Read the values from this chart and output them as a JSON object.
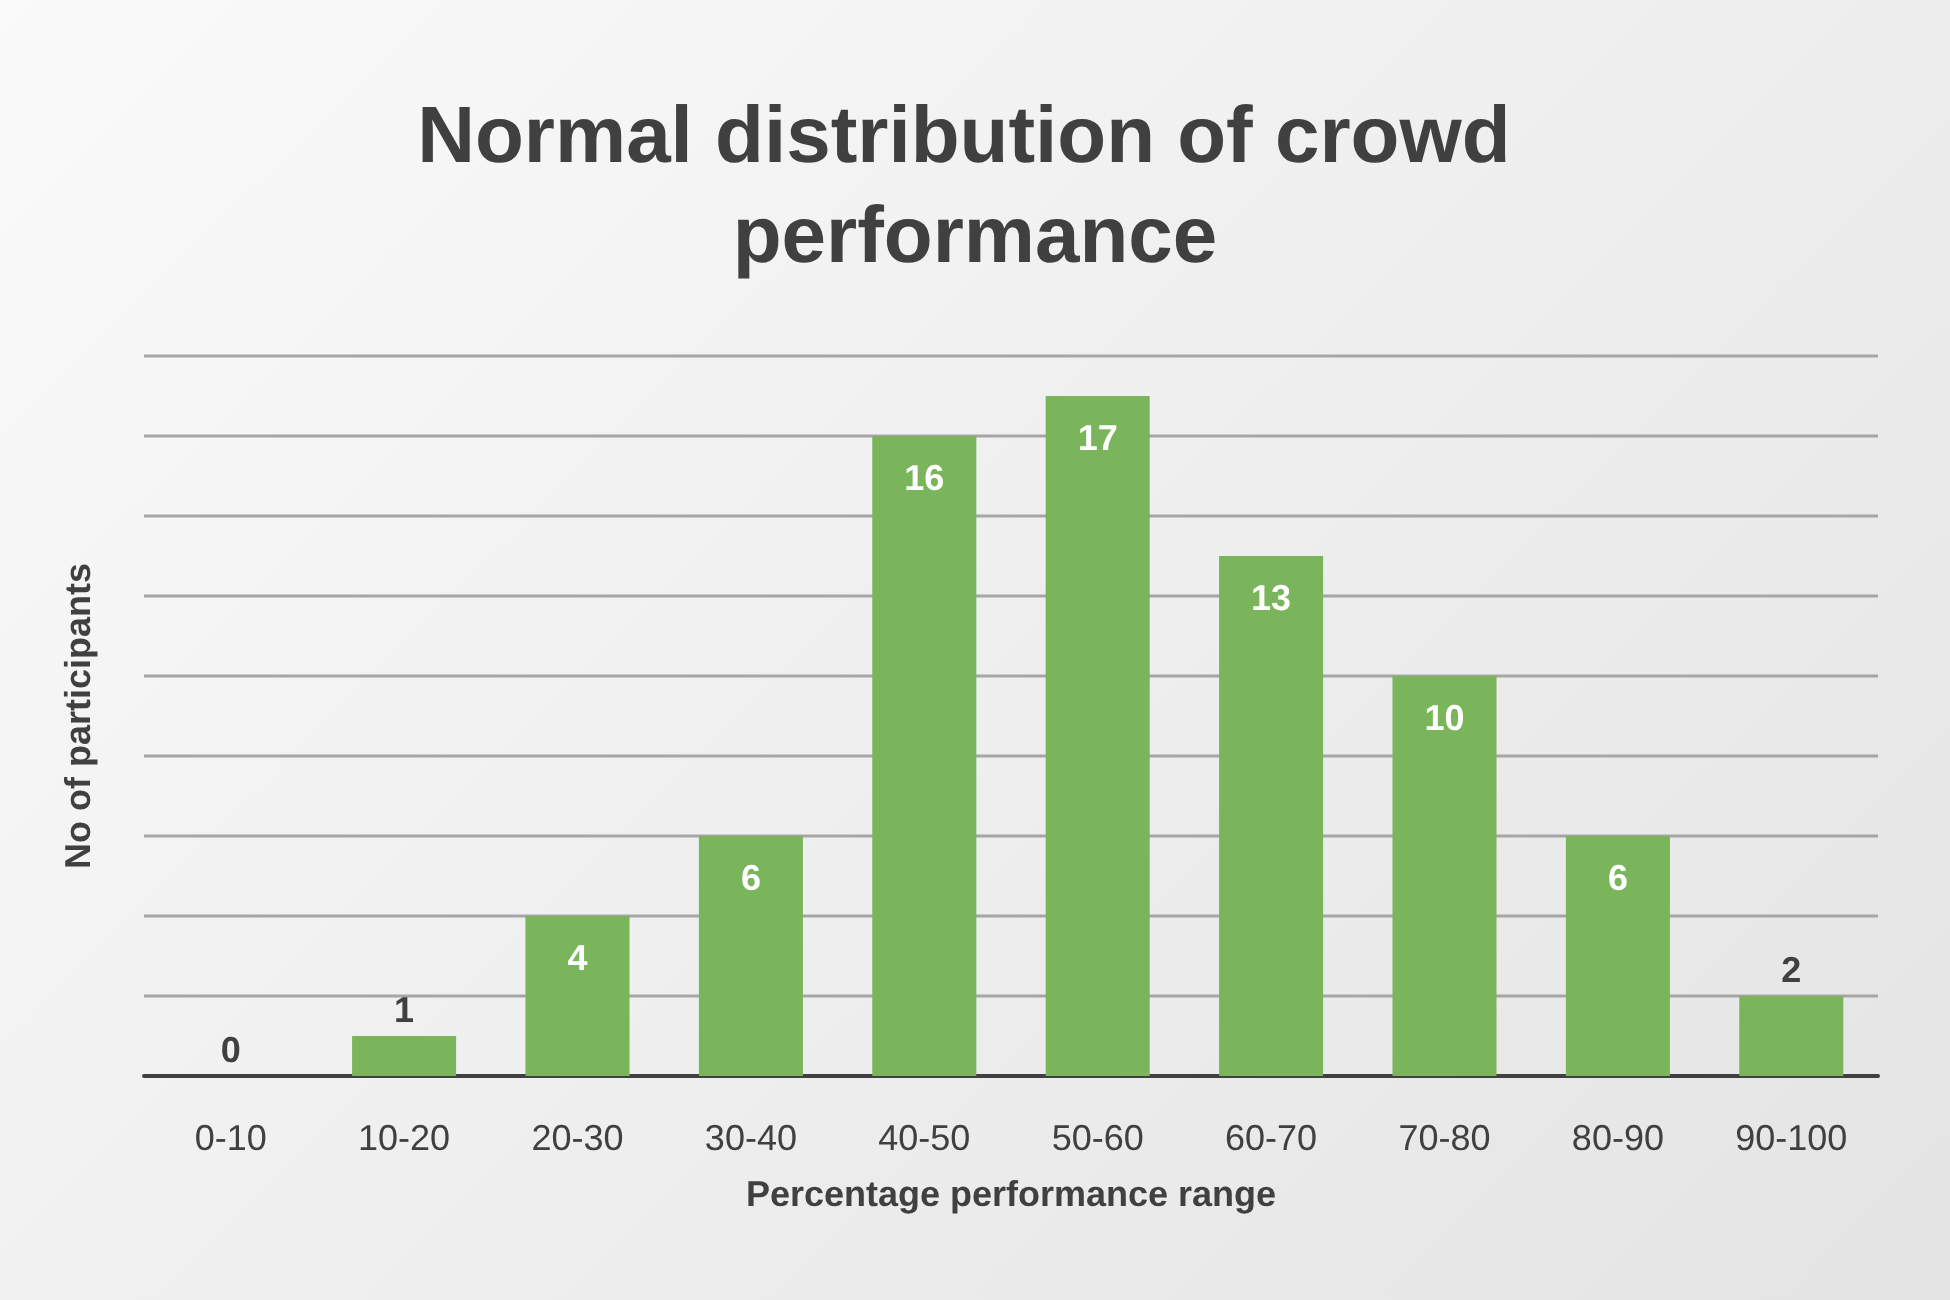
{
  "chart_data": {
    "type": "bar",
    "title": "Normal distribution of crowd performance",
    "xlabel": "Percentage performance range",
    "ylabel": "No of participants",
    "categories": [
      "0-10",
      "10-20",
      "20-30",
      "30-40",
      "40-50",
      "50-60",
      "60-70",
      "70-80",
      "80-90",
      "90-100"
    ],
    "values": [
      0,
      1,
      4,
      6,
      16,
      17,
      13,
      10,
      6,
      2
    ],
    "color": "#7ab55c",
    "ylim": [
      0,
      18
    ],
    "yticks": [
      {
        "value": 0,
        "label": null
      },
      {
        "value": 2,
        "label": null
      },
      {
        "value": 4,
        "label": null
      },
      {
        "value": 6,
        "label": null
      },
      {
        "value": 8,
        "label": null
      },
      {
        "value": 10,
        "label": null
      },
      {
        "value": 12,
        "label": null
      },
      {
        "value": 14,
        "label": null
      },
      {
        "value": 16,
        "label": null
      },
      {
        "value": 18,
        "label": null
      }
    ],
    "grid": "y",
    "tick_labels": "x",
    "data_labels": true
  }
}
